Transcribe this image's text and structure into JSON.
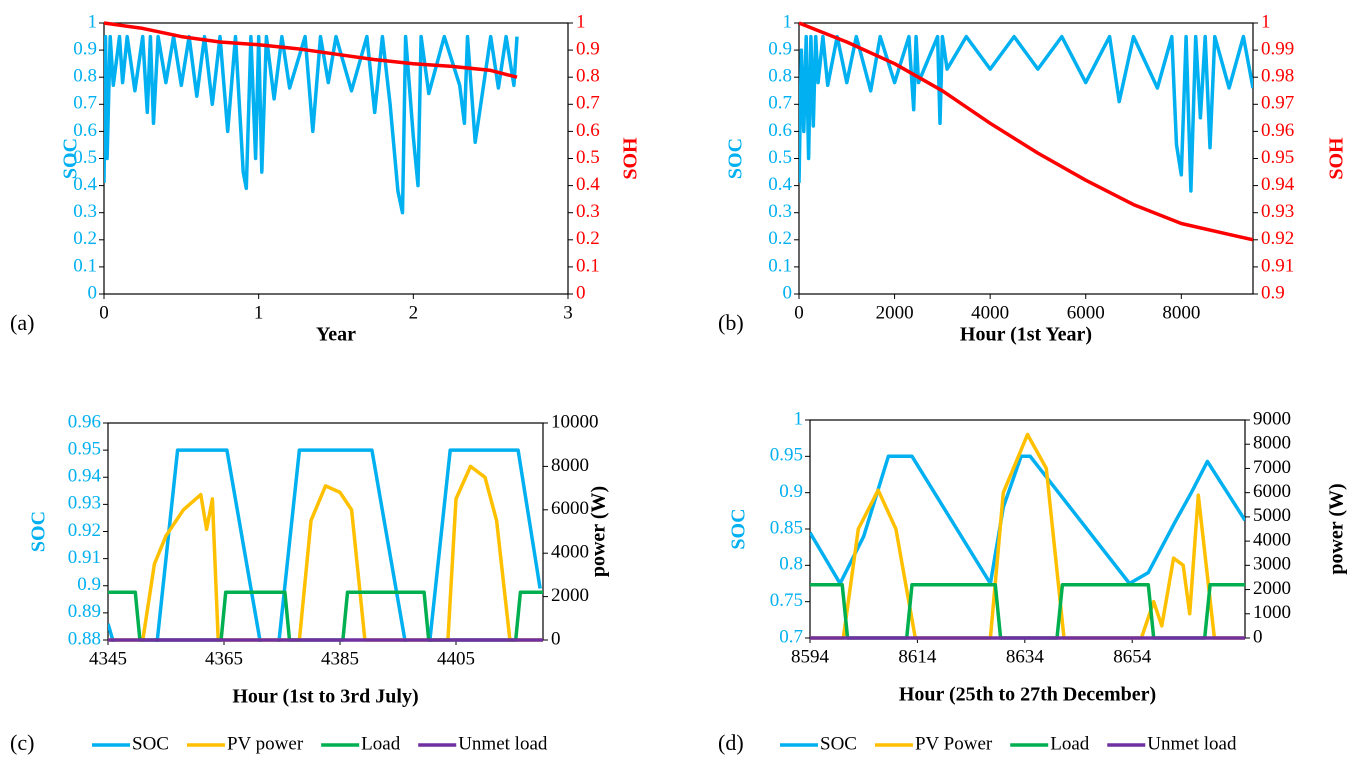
{
  "chart_data": [
    {
      "type": "line",
      "panel_label": "(a)",
      "xlabel": "Year",
      "ylabel": "SOC",
      "y2label": "SOH",
      "ycolor": "#00b0f0",
      "y2color": "#ff0000",
      "xlim": [
        0,
        3
      ],
      "xticks": [
        0,
        1,
        2,
        3
      ],
      "ylim": [
        0,
        1
      ],
      "yticks": [
        0,
        0.1,
        0.2,
        0.3,
        0.4,
        0.5,
        0.6,
        0.7,
        0.8,
        0.9,
        1
      ],
      "y2lim": [
        0,
        1
      ],
      "y2ticks": [
        0,
        0.1,
        0.2,
        0.3,
        0.4,
        0.5,
        0.6,
        0.7,
        0.8,
        0.9,
        1
      ],
      "series": [
        {
          "color": "#00b0f0",
          "x": [
            0,
            0.01,
            0.02,
            0.04,
            0.06,
            0.1,
            0.12,
            0.15,
            0.2,
            0.25,
            0.28,
            0.3,
            0.32,
            0.35,
            0.4,
            0.45,
            0.5,
            0.55,
            0.6,
            0.65,
            0.7,
            0.75,
            0.8,
            0.85,
            0.9,
            0.92,
            0.95,
            0.98,
            1.0,
            1.02,
            1.05,
            1.1,
            1.15,
            1.2,
            1.3,
            1.35,
            1.4,
            1.45,
            1.5,
            1.6,
            1.7,
            1.75,
            1.8,
            1.85,
            1.9,
            1.93,
            1.95,
            2.0,
            2.03,
            2.05,
            2.1,
            2.2,
            2.3,
            2.33,
            2.35,
            2.4,
            2.5,
            2.55,
            2.6,
            2.65,
            2.67
          ],
          "values": [
            0.41,
            0.95,
            0.5,
            0.95,
            0.77,
            0.95,
            0.78,
            0.95,
            0.75,
            0.95,
            0.67,
            0.95,
            0.63,
            0.95,
            0.78,
            0.95,
            0.77,
            0.95,
            0.73,
            0.95,
            0.7,
            0.95,
            0.6,
            0.95,
            0.45,
            0.39,
            0.95,
            0.5,
            0.95,
            0.45,
            0.95,
            0.72,
            0.95,
            0.76,
            0.95,
            0.6,
            0.95,
            0.78,
            0.95,
            0.75,
            0.95,
            0.67,
            0.95,
            0.7,
            0.38,
            0.3,
            0.95,
            0.58,
            0.4,
            0.95,
            0.74,
            0.95,
            0.77,
            0.63,
            0.95,
            0.56,
            0.95,
            0.76,
            0.95,
            0.77,
            0.95
          ]
        },
        {
          "color": "#ff0000",
          "axis": "y2",
          "x": [
            0,
            0.25,
            0.5,
            0.75,
            1,
            1.25,
            1.5,
            1.75,
            2,
            2.25,
            2.5,
            2.67
          ],
          "values": [
            1,
            0.98,
            0.95,
            0.93,
            0.92,
            0.905,
            0.885,
            0.865,
            0.85,
            0.84,
            0.825,
            0.8
          ]
        }
      ]
    },
    {
      "type": "line",
      "panel_label": "(b)",
      "xlabel": "Hour (1st Year)",
      "ylabel": "SOC",
      "y2label": "SOH",
      "ycolor": "#00b0f0",
      "y2color": "#ff0000",
      "xlim": [
        0,
        9500
      ],
      "xticks": [
        0,
        2000,
        4000,
        6000,
        8000
      ],
      "ylim": [
        0,
        1
      ],
      "yticks": [
        0,
        0.1,
        0.2,
        0.3,
        0.4,
        0.5,
        0.6,
        0.7,
        0.8,
        0.9,
        1
      ],
      "y2lim": [
        0.9,
        1
      ],
      "y2ticks": [
        0.9,
        0.91,
        0.92,
        0.93,
        0.94,
        0.95,
        0.96,
        0.97,
        0.98,
        0.99,
        1
      ],
      "series": [
        {
          "color": "#00b0f0",
          "x": [
            0,
            50,
            100,
            150,
            200,
            250,
            300,
            350,
            400,
            500,
            600,
            800,
            1000,
            1200,
            1500,
            1700,
            2000,
            2300,
            2400,
            2450,
            2500,
            2900,
            2950,
            3000,
            3100,
            3500,
            4000,
            4500,
            5000,
            5500,
            6000,
            6500,
            6700,
            7000,
            7500,
            7800,
            7900,
            8000,
            8100,
            8200,
            8300,
            8400,
            8500,
            8600,
            8700,
            9000,
            9300,
            9500
          ],
          "values": [
            0.41,
            0.9,
            0.6,
            0.95,
            0.5,
            0.95,
            0.62,
            0.95,
            0.78,
            0.95,
            0.77,
            0.95,
            0.78,
            0.95,
            0.75,
            0.95,
            0.78,
            0.95,
            0.68,
            0.95,
            0.78,
            0.95,
            0.63,
            0.95,
            0.83,
            0.95,
            0.83,
            0.95,
            0.83,
            0.95,
            0.78,
            0.95,
            0.71,
            0.95,
            0.76,
            0.95,
            0.55,
            0.44,
            0.95,
            0.38,
            0.95,
            0.65,
            0.95,
            0.54,
            0.95,
            0.76,
            0.95,
            0.76
          ]
        },
        {
          "color": "#ff0000",
          "axis": "y2",
          "x": [
            0,
            1000,
            2000,
            3000,
            4000,
            5000,
            6000,
            7000,
            8000,
            9000,
            9500
          ],
          "values": [
            1,
            0.993,
            0.985,
            0.975,
            0.963,
            0.952,
            0.942,
            0.933,
            0.926,
            0.922,
            0.92
          ]
        }
      ]
    },
    {
      "type": "line",
      "panel_label": "(c)",
      "xlabel": "Hour (1st to 3rd July)",
      "ylabel": "SOC",
      "y2label": "power (W)",
      "ycolor": "#00b0f0",
      "y2color": "#000000",
      "xlim": [
        4345,
        4420
      ],
      "xticks": [
        4345,
        4365,
        4385,
        4405
      ],
      "ylim": [
        0.88,
        0.96
      ],
      "yticks": [
        0.88,
        0.89,
        0.9,
        0.91,
        0.92,
        0.93,
        0.94,
        0.95,
        0.96
      ],
      "y2lim": [
        0,
        10000
      ],
      "y2ticks": [
        0,
        2000,
        4000,
        6000,
        8000,
        10000
      ],
      "series": [
        {
          "name": "SOC",
          "color": "#00b0f0",
          "x": [
            4345,
            4346.5,
            4353,
            4357,
            4365.5,
            4372,
            4374,
            4378,
            4390.5,
            4397,
            4400,
            4404,
            4415.7,
            4419.5
          ],
          "values": [
            0.886,
            0.875,
            0.87,
            0.95,
            0.95,
            0.87,
            0.87,
            0.95,
            0.95,
            0.87,
            0.87,
            0.95,
            0.95,
            0.899
          ]
        },
        {
          "name": "PV power",
          "color": "#ffc000",
          "axis": "y2",
          "x": [
            4345,
            4351,
            4353,
            4355,
            4358,
            4361,
            4362,
            4363,
            4364,
            4378,
            4380,
            4382.5,
            4385,
            4387,
            4389.3,
            4403.6,
            4405,
            4407.5,
            4410,
            4412,
            4414.3,
            4420
          ],
          "values": [
            0,
            0,
            3500,
            4800,
            6000,
            6700,
            5100,
            6500,
            0,
            0,
            5500,
            7100,
            6800,
            6000,
            0,
            0,
            6500,
            8000,
            7500,
            5500,
            0,
            0
          ]
        },
        {
          "name": "Load",
          "color": "#00b050",
          "axis": "y2",
          "x": [
            4345,
            4349.7,
            4350.5,
            4364.5,
            4365.3,
            4375.5,
            4376.3,
            4385.5,
            4386.3,
            4399.5,
            4400.3,
            4415.3,
            4416.1,
            4420
          ],
          "values": [
            2200,
            2200,
            0,
            0,
            2200,
            2200,
            0,
            0,
            2200,
            2200,
            0,
            0,
            2200,
            2200
          ]
        },
        {
          "name": "Unmet load",
          "color": "#7030a0",
          "axis": "y2",
          "x": [
            4345,
            4420
          ],
          "values": [
            0,
            0
          ]
        }
      ]
    },
    {
      "type": "line",
      "panel_label": "(d)",
      "xlabel": "Hour (25th to 27th December)",
      "ylabel": "SOC",
      "y2label": "power (W)",
      "ycolor": "#00b0f0",
      "y2color": "#000000",
      "xlim": [
        8594,
        8675
      ],
      "xticks": [
        8594,
        8614,
        8634,
        8654
      ],
      "ylim": [
        0.7,
        1
      ],
      "yticks": [
        0.7,
        0.75,
        0.8,
        0.85,
        0.9,
        0.95,
        1
      ],
      "y2lim": [
        0,
        9000
      ],
      "y2ticks": [
        0,
        1000,
        2000,
        3000,
        4000,
        5000,
        6000,
        7000,
        8000,
        9000
      ],
      "series": [
        {
          "name": "SOC",
          "color": "#00b0f0",
          "x": [
            8594,
            8599.6,
            8604,
            8608.6,
            8613,
            8627.6,
            8630,
            8633.3,
            8635,
            8653.5,
            8657,
            8662,
            8665,
            8668,
            8675
          ],
          "values": [
            0.845,
            0.775,
            0.84,
            0.95,
            0.95,
            0.775,
            0.88,
            0.95,
            0.95,
            0.775,
            0.79,
            0.86,
            0.9,
            0.943,
            0.862
          ]
        },
        {
          "name": "PV Power",
          "color": "#ffc000",
          "axis": "y2",
          "x": [
            8594,
            8600.2,
            8603,
            8606.7,
            8610,
            8613.6,
            8627.6,
            8630,
            8634.5,
            8638,
            8641.3,
            8655.7,
            8658,
            8659.5,
            8661.7,
            8663.5,
            8664.7,
            8666.3,
            8669.3,
            8675
          ],
          "values": [
            0,
            0,
            4500,
            6100,
            4500,
            0,
            0,
            6000,
            8400,
            7000,
            0,
            0,
            1500,
            500,
            3300,
            3000,
            1000,
            5900,
            0,
            0
          ]
        },
        {
          "name": "Load",
          "color": "#00b050",
          "axis": "y2",
          "x": [
            8594,
            8600,
            8601,
            8612,
            8613,
            8628.5,
            8629.5,
            8640,
            8641,
            8657,
            8658,
            8667.5,
            8668.5,
            8675
          ],
          "values": [
            2200,
            2200,
            0,
            0,
            2200,
            2200,
            0,
            0,
            2200,
            2200,
            0,
            0,
            2200,
            2200
          ]
        },
        {
          "name": "Unmet load",
          "color": "#7030a0",
          "axis": "y2",
          "x": [
            8594,
            8675
          ],
          "values": [
            0,
            0
          ]
        }
      ]
    }
  ]
}
